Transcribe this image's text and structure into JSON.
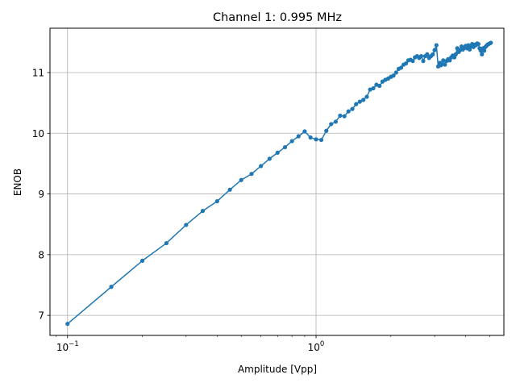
{
  "chart_data": {
    "type": "line",
    "title": "Channel 1: 0.995 MHz",
    "xlabel": "Amplitude [Vpp]",
    "ylabel": "ENOB",
    "xscale": "log",
    "xlim": [
      0.085,
      5.7
    ],
    "ylim": [
      6.67,
      11.73
    ],
    "grid": true,
    "x_ticks": [
      {
        "value": 0.1,
        "base": "10",
        "exp": "−1"
      },
      {
        "value": 1,
        "base": "10",
        "exp": "0"
      }
    ],
    "y_ticks": [
      7,
      8,
      9,
      10,
      11
    ],
    "line_color": "#1f77b4",
    "series": [
      {
        "x": [
          0.1,
          0.15,
          0.2,
          0.25,
          0.3,
          0.35,
          0.4,
          0.45,
          0.5,
          0.55,
          0.6,
          0.65,
          0.7,
          0.75,
          0.8,
          0.85,
          0.9,
          0.95,
          1.0,
          1.05,
          1.1,
          1.15,
          1.2,
          1.25,
          1.3,
          1.35,
          1.4,
          1.45,
          1.5,
          1.55,
          1.6,
          1.65,
          1.7,
          1.75,
          1.8,
          1.85,
          1.9,
          1.95,
          2.0,
          2.05,
          2.1,
          2.15,
          2.2,
          2.25,
          2.3,
          2.35,
          2.4,
          2.45,
          2.5,
          2.55,
          2.6,
          2.65,
          2.7,
          2.75,
          2.8,
          2.85,
          2.9,
          2.95,
          3.0,
          3.05,
          3.1,
          3.15,
          3.18,
          3.2,
          3.25,
          3.3,
          3.35,
          3.4,
          3.45,
          3.5,
          3.55,
          3.6,
          3.65,
          3.7,
          3.75,
          3.8,
          3.85,
          3.9,
          3.95,
          4.0,
          4.05,
          4.1,
          4.15,
          4.2,
          4.25,
          4.3,
          4.35,
          4.4,
          4.45,
          4.5,
          4.55,
          4.6,
          4.65,
          4.7,
          4.75,
          4.8,
          4.85,
          4.9,
          4.95,
          5.0,
          5.05
        ],
        "y": [
          6.86,
          7.47,
          7.9,
          8.19,
          8.49,
          8.72,
          8.88,
          9.07,
          9.23,
          9.33,
          9.46,
          9.58,
          9.68,
          9.77,
          9.87,
          9.95,
          10.03,
          9.93,
          9.9,
          9.89,
          10.04,
          10.15,
          10.19,
          10.29,
          10.28,
          10.36,
          10.4,
          10.48,
          10.52,
          10.55,
          10.6,
          10.72,
          10.74,
          10.8,
          10.78,
          10.85,
          10.88,
          10.9,
          10.93,
          10.95,
          11.0,
          11.06,
          11.08,
          11.13,
          11.15,
          11.2,
          11.21,
          11.19,
          11.25,
          11.27,
          11.24,
          11.27,
          11.19,
          11.27,
          11.3,
          11.24,
          11.27,
          11.3,
          11.37,
          11.45,
          11.1,
          11.16,
          11.12,
          11.14,
          11.2,
          11.13,
          11.19,
          11.22,
          11.2,
          11.25,
          11.28,
          11.25,
          11.3,
          11.4,
          11.34,
          11.37,
          11.43,
          11.38,
          11.41,
          11.44,
          11.4,
          11.45,
          11.38,
          11.43,
          11.47,
          11.42,
          11.46,
          11.45,
          11.48,
          11.47,
          11.4,
          11.36,
          11.3,
          11.4,
          11.36,
          11.42,
          11.44,
          11.46,
          11.47,
          11.48,
          11.49
        ]
      }
    ]
  }
}
